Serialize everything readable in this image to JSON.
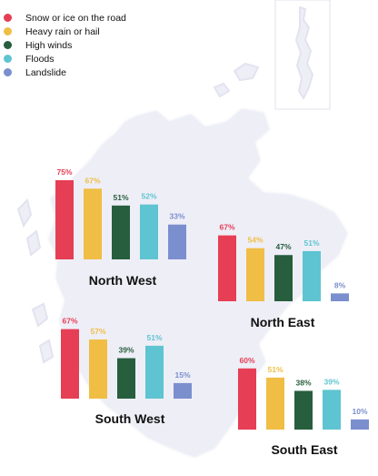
{
  "legend": {
    "items": [
      {
        "label": "Snow or ice on the road",
        "color": "#E63E55"
      },
      {
        "label": "Heavy rain or hail",
        "color": "#F0BE45"
      },
      {
        "label": "High winds",
        "color": "#275E3E"
      },
      {
        "label": "Floods",
        "color": "#5EC4D1"
      },
      {
        "label": "Landslide",
        "color": "#7B8FCE"
      }
    ]
  },
  "colors": {
    "map_fill": "#EEEEF7",
    "map_glow": "#E3E3F0",
    "label_text": "#111111"
  },
  "chart_data": [
    {
      "type": "bar",
      "region": "North West",
      "categories": [
        "Snow or ice on the road",
        "Heavy rain or hail",
        "High winds",
        "Floods",
        "Landslide"
      ],
      "values": [
        75,
        67,
        51,
        52,
        33
      ],
      "labels": [
        "75%",
        "67%",
        "51%",
        "52%",
        "33%"
      ],
      "ylim": [
        0,
        100
      ]
    },
    {
      "type": "bar",
      "region": "North East",
      "categories": [
        "Snow or ice on the road",
        "Heavy rain or hail",
        "High winds",
        "Floods",
        "Landslide"
      ],
      "values": [
        67,
        54,
        47,
        51,
        8
      ],
      "labels": [
        "67%",
        "54%",
        "47%",
        "51%",
        "8%"
      ],
      "ylim": [
        0,
        100
      ]
    },
    {
      "type": "bar",
      "region": "South West",
      "categories": [
        "Snow or ice on the road",
        "Heavy rain or hail",
        "High winds",
        "Floods",
        "Landslide"
      ],
      "values": [
        67,
        57,
        39,
        51,
        15
      ],
      "labels": [
        "67%",
        "57%",
        "39%",
        "51%",
        "15%"
      ],
      "ylim": [
        0,
        100
      ]
    },
    {
      "type": "bar",
      "region": "South East",
      "categories": [
        "Snow or ice on the road",
        "Heavy rain or hail",
        "High winds",
        "Floods",
        "Landslide"
      ],
      "values": [
        60,
        51,
        38,
        39,
        10
      ],
      "labels": [
        "60%",
        "51%",
        "38%",
        "39%",
        "10%"
      ],
      "ylim": [
        0,
        100
      ]
    }
  ]
}
